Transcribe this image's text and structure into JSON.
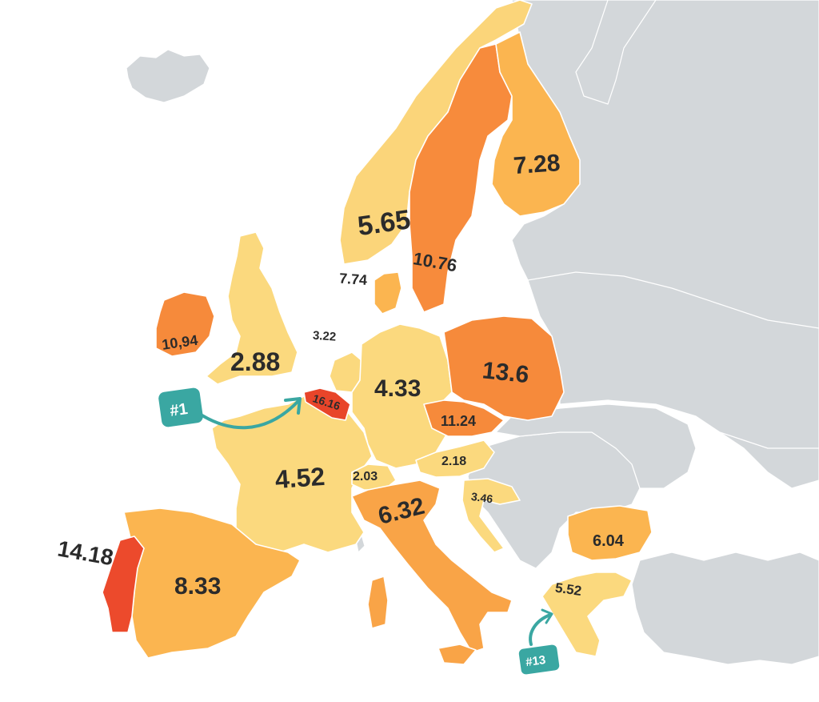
{
  "colors": {
    "sea": "#ffffff",
    "non_data_land": "#d3d7da",
    "scale": [
      "#fbd97e",
      "#fbb550",
      "#f8963f",
      "#ef6a30",
      "#e8452a"
    ],
    "badge": "#3aa7a2"
  },
  "countries": [
    {
      "id": "belgium",
      "value": "16.16",
      "color": "#e8452a"
    },
    {
      "id": "portugal",
      "value": "14.18",
      "color": "#ec4a2c"
    },
    {
      "id": "poland",
      "value": "13.6",
      "color": "#f68a3b"
    },
    {
      "id": "czechia",
      "value": "11.24",
      "color": "#f68a3b"
    },
    {
      "id": "ireland",
      "value": "10,94",
      "color": "#f68a3b"
    },
    {
      "id": "sweden",
      "value": "10.76",
      "color": "#f78b3c"
    },
    {
      "id": "spain",
      "value": "8.33",
      "color": "#fbb550"
    },
    {
      "id": "denmark",
      "value": "7.74",
      "color": "#fbb550"
    },
    {
      "id": "finland",
      "value": "7.28",
      "color": "#fbb550"
    },
    {
      "id": "italy",
      "value": "6.32",
      "color": "#f9a447"
    },
    {
      "id": "bulgaria",
      "value": "6.04",
      "color": "#fbb550"
    },
    {
      "id": "norway",
      "value": "5.65",
      "color": "#fbd57a"
    },
    {
      "id": "greece",
      "value": "5.52",
      "color": "#fbd97e"
    },
    {
      "id": "france",
      "value": "4.52",
      "color": "#fbd97e"
    },
    {
      "id": "germany",
      "value": "4.33",
      "color": "#fbd97e"
    },
    {
      "id": "croatia",
      "value": "3.46",
      "color": "#fbd97e"
    },
    {
      "id": "netherlands",
      "value": "3.22",
      "color": "#fbd97e"
    },
    {
      "id": "uk",
      "value": "2.88",
      "color": "#fbd97e"
    },
    {
      "id": "austria",
      "value": "2.18",
      "color": "#fbd97e"
    },
    {
      "id": "switzerland",
      "value": "2.03",
      "color": "#fbd97e"
    }
  ],
  "badges": {
    "first": "#1",
    "thirteenth": "#13"
  }
}
